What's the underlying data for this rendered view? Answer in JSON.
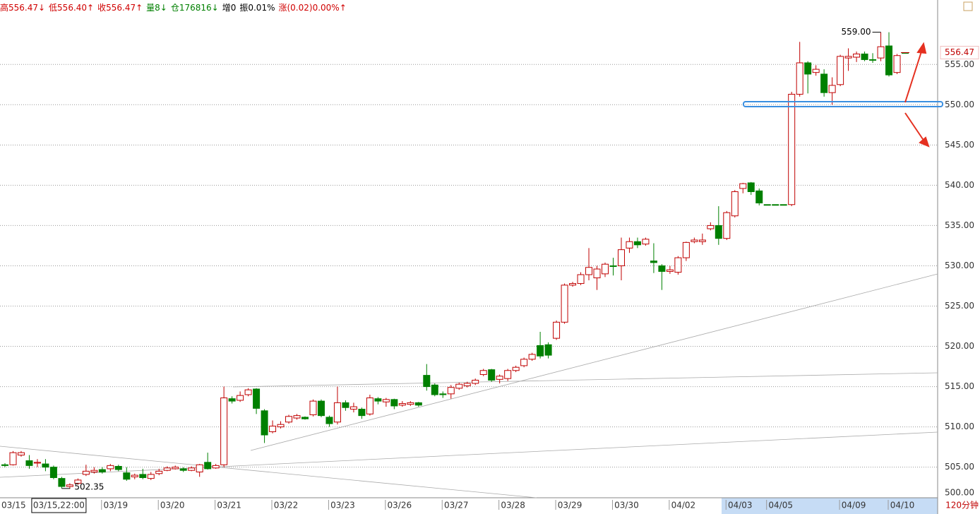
{
  "chart_data": {
    "type": "candlestick",
    "header": [
      {
        "text": "高556.47↓",
        "color": "#d00000"
      },
      {
        "text": "低556.40↑",
        "color": "#d00000"
      },
      {
        "text": "收556.47↑",
        "color": "#d00000"
      },
      {
        "text": "量8↓",
        "color": "#008000"
      },
      {
        "text": "仓176816↓",
        "color": "#008000"
      },
      {
        "text": "增0",
        "color": "#000000"
      },
      {
        "text": "振0.01%",
        "color": "#000000"
      },
      {
        "text": "涨(0.02)0.00%↑",
        "color": "#d00000"
      }
    ],
    "period_label": "120分钟",
    "annotations": {
      "max": "559.00",
      "min": "502.35",
      "last": "556.47"
    },
    "up_color": "#c00000",
    "down_color": "#008000",
    "categories": [
      "03/15",
      null,
      null,
      null,
      null,
      null,
      null,
      "03/15,22:00",
      null,
      null,
      null,
      null,
      null,
      null,
      "03/19",
      null,
      null,
      null,
      null,
      null,
      null,
      "03/20",
      null,
      null,
      null,
      null,
      null,
      null,
      "03/21",
      null,
      null,
      null,
      null,
      null,
      null,
      "03/22",
      null,
      null,
      null,
      null,
      null,
      null,
      "03/23",
      null,
      null,
      null,
      null,
      null,
      null,
      "03/26",
      null,
      null,
      null,
      null,
      null,
      null,
      "03/27",
      null,
      null,
      null,
      null,
      null,
      null,
      "03/28",
      null,
      null,
      null,
      null,
      null,
      null,
      "03/29",
      null,
      null,
      null,
      null,
      null,
      null,
      "03/30",
      null,
      null,
      null,
      null,
      null,
      null,
      "04/02",
      null,
      null,
      null,
      null,
      null,
      null,
      "04/03",
      null,
      null,
      null,
      null,
      "04/05",
      null,
      null,
      null,
      null,
      null,
      null,
      null,
      null,
      "04/09",
      null,
      null,
      null,
      null,
      null,
      "04/10"
    ],
    "open": [
      505.3,
      505.3,
      506.5,
      505.8,
      505.5,
      505.4,
      505,
      503.6,
      502.6,
      503,
      504.1,
      504.4,
      504.7,
      504.8,
      505.1,
      504.3,
      503.8,
      504.1,
      503.6,
      504.2,
      504.6,
      504.8,
      504.8,
      504.6,
      504.4,
      505.6,
      504.9,
      505.3,
      513.5,
      513.3,
      514,
      514.7,
      512,
      509.4,
      510,
      510.6,
      511.1,
      511.2,
      511.5,
      513.2,
      511.2,
      510.6,
      513,
      512.2,
      512.2,
      511.6,
      513.5,
      513.1,
      513.4,
      512.7,
      512.8,
      513,
      516.4,
      515.2,
      514.1,
      514.1,
      514.8,
      515.1,
      515.4,
      516.5,
      517.1,
      515.9,
      516,
      517,
      517.6,
      518.4,
      520.1,
      520.2,
      521,
      523,
      527.6,
      527.8,
      528.9,
      528.5,
      529,
      530,
      530,
      532.2,
      533,
      532.7,
      530.6,
      530,
      529.3,
      529.2,
      531,
      533,
      533,
      534.6,
      535,
      533.4,
      536.2,
      539.6,
      540.3,
      539.3,
      537.6,
      537.6,
      537.6,
      537.6,
      551.3,
      555.2,
      554,
      553.8,
      551.5,
      552.5,
      555.8,
      555.9,
      556.3,
      555.6,
      555.8,
      557.3,
      554,
      556.47
    ],
    "high": [
      505.5,
      507,
      507,
      506.5,
      506,
      506,
      505.2,
      503.8,
      503,
      503.6,
      505.3,
      505,
      505,
      505.4,
      505.3,
      505,
      504.2,
      504.8,
      504.4,
      504.8,
      505.1,
      505.2,
      505,
      505.1,
      505.4,
      506.8,
      505.4,
      515,
      513.8,
      514.4,
      514.8,
      514.8,
      512.2,
      510.8,
      510.7,
      511.5,
      511.6,
      511.3,
      513.4,
      513.4,
      511.4,
      515,
      513.3,
      513,
      512.4,
      514,
      513.7,
      513.6,
      513.5,
      513.2,
      513.2,
      513.1,
      517.8,
      515.4,
      514.4,
      515.2,
      515.5,
      515.6,
      516,
      517.2,
      517.2,
      516.5,
      517.2,
      517.6,
      518.6,
      519.2,
      521.8,
      520.5,
      523.2,
      527.8,
      528,
      529.2,
      532.2,
      530,
      530.4,
      531,
      533.5,
      533.5,
      533.5,
      533.5,
      532.8,
      530.2,
      530,
      531.2,
      533,
      533.5,
      534,
      535.4,
      537.4,
      536.8,
      539.4,
      540.3,
      540.4,
      539.6,
      537.6,
      537.6,
      537.6,
      551.6,
      557.8,
      555.4,
      554.9,
      554.4,
      553.4,
      556.2,
      557,
      556.6,
      556.6,
      556.4,
      559,
      559,
      556.3,
      556.47
    ],
    "low": [
      505,
      505.2,
      506.3,
      504.8,
      505,
      504.5,
      503.5,
      502.35,
      502.35,
      502.8,
      503.9,
      504.2,
      504.2,
      504.5,
      504.5,
      503.3,
      503.5,
      503.5,
      503.4,
      504,
      504.5,
      504.7,
      504.4,
      504.5,
      503.8,
      504.7,
      504.8,
      505,
      512.9,
      513.1,
      513.8,
      511.6,
      508,
      509.2,
      509.8,
      510.4,
      510.9,
      510.9,
      511.3,
      511.2,
      510,
      510.3,
      512,
      511.8,
      511,
      511.4,
      512.8,
      512.5,
      512.2,
      512.5,
      512.6,
      512.5,
      514.5,
      513.8,
      513.6,
      513.5,
      514.6,
      514.9,
      515.2,
      516.3,
      515.6,
      515.4,
      515.7,
      516.8,
      517.4,
      518.2,
      518.5,
      518.5,
      520.8,
      522.8,
      527.4,
      527.6,
      528.2,
      527,
      528.6,
      528.8,
      528.2,
      531.6,
      532.2,
      532.5,
      529.1,
      527,
      529,
      528.9,
      530.6,
      532.8,
      532.6,
      534.4,
      532.6,
      533.2,
      536,
      539,
      538.8,
      537.5,
      537.6,
      537.6,
      537.6,
      537.4,
      551,
      551.4,
      553.6,
      551,
      550,
      552.3,
      554.2,
      555.3,
      555.4,
      555.2,
      555.4,
      553.5,
      553.8,
      556.4
    ],
    "close": [
      505.2,
      506.8,
      506.8,
      505.2,
      505.6,
      505,
      503.7,
      502.6,
      502.8,
      503.4,
      504.5,
      504.6,
      504.4,
      505.2,
      504.7,
      503.5,
      504,
      503.7,
      504.1,
      504.5,
      504.9,
      505,
      504.6,
      504.9,
      505.3,
      504.8,
      505.2,
      513.6,
      513.2,
      513.9,
      514.6,
      512.3,
      509,
      510.1,
      510.3,
      511.3,
      511.4,
      511,
      513.2,
      511.4,
      510.4,
      513,
      512.4,
      512.5,
      511.4,
      513.6,
      513.2,
      513.4,
      512.6,
      512.9,
      513,
      512.7,
      515,
      514,
      514,
      514.9,
      515.3,
      515.4,
      515.8,
      517,
      515.8,
      516.3,
      517,
      517.4,
      518.4,
      519,
      518.8,
      518.9,
      523,
      527.6,
      527.8,
      528.9,
      529.8,
      529.6,
      530.2,
      530,
      532,
      533,
      532.6,
      533.3,
      530.4,
      529.3,
      529.5,
      531,
      532.9,
      533.2,
      533.2,
      535,
      533.4,
      536.6,
      539.2,
      540.2,
      539.2,
      537.8,
      537.6,
      537.6,
      537.6,
      551.3,
      555.2,
      553.8,
      554.4,
      551.5,
      552.4,
      556,
      556,
      556.3,
      555.6,
      555.6,
      557.2,
      553.7,
      556.1,
      556.47
    ],
    "ylim": [
      501.2,
      563
    ],
    "yticks": [
      {
        "value": 500,
        "label": "500.00"
      },
      {
        "value": 505,
        "label": "505.00"
      },
      {
        "value": 510,
        "label": "510.00"
      },
      {
        "value": 515,
        "label": "515.00"
      },
      {
        "value": 520,
        "label": "520.00"
      },
      {
        "value": 525,
        "label": "525.00"
      },
      {
        "value": 530,
        "label": "530.00"
      },
      {
        "value": 535,
        "label": "535.00"
      },
      {
        "value": 540,
        "label": "540.00"
      },
      {
        "value": 545,
        "label": "545.00"
      },
      {
        "value": 550,
        "label": "550.00"
      },
      {
        "value": 555,
        "label": "555.00"
      }
    ],
    "grid": true
  }
}
